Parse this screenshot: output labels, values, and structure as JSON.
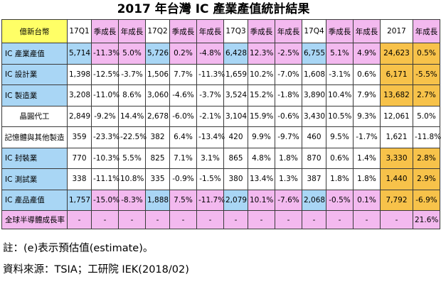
{
  "title": "2017 年台灣 IC 產業產值統計結果",
  "colors": {
    "header_label": "#ffff66",
    "quarter": "#ccf0a0",
    "growth": "#f3b9ef",
    "annual": "#f7c24a",
    "highlight_row": "#a9d6f5"
  },
  "chart_data": {
    "type": "table",
    "title": "2017 年台灣 IC 產業產值統計結果",
    "columns": [
      "億新台幣",
      "17Q1",
      "季成長",
      "年成長",
      "17Q2",
      "季成長",
      "年成長",
      "17Q3",
      "季成長",
      "年成長",
      "17Q4",
      "季成長",
      "年成長",
      "2017",
      "年成長"
    ],
    "rows": [
      {
        "label": "IC 產業產值",
        "values": [
          "5,714",
          "-11.3%",
          "5.0%",
          "5,726",
          "0.2%",
          "-4.8%",
          "6,428",
          "12.3%",
          "-2.5%",
          "6,755",
          "5.1%",
          "4.9%",
          "24,623",
          "0.5%"
        ]
      },
      {
        "label": "IC 設計業",
        "values": [
          "1,398",
          "-12.5%",
          "-3.7%",
          "1,506",
          "7.7%",
          "-11.3%",
          "1,659",
          "10.2%",
          "-7.0%",
          "1,608",
          "-3.1%",
          "0.6%",
          "6,171",
          "-5.5%"
        ]
      },
      {
        "label": "IC 製造業",
        "values": [
          "3,208",
          "-11.0%",
          "8.6%",
          "3,060",
          "-4.6%",
          "-3.7%",
          "3,524",
          "15.2%",
          "-1.8%",
          "3,890",
          "10.4%",
          "7.9%",
          "13,682",
          "2.7%"
        ]
      },
      {
        "label": "晶圓代工",
        "values": [
          "2,849",
          "-9.2%",
          "14.4%",
          "2,678",
          "-6.0%",
          "-2.1%",
          "3,104",
          "15.9%",
          "-0.6%",
          "3,430",
          "10.5%",
          "9.3%",
          "12,061",
          "5.0%"
        ]
      },
      {
        "label": "記憶體與其他製造",
        "values": [
          "359",
          "-23.3%",
          "-22.5%",
          "382",
          "6.4%",
          "-13.4%",
          "420",
          "9.9%",
          "-9.7%",
          "460",
          "9.5%",
          "-1.7%",
          "1,621",
          "-11.8%"
        ]
      },
      {
        "label": "IC 封裝業",
        "values": [
          "770",
          "-10.3%",
          "5.5%",
          "825",
          "7.1%",
          "3.1%",
          "865",
          "4.8%",
          "1.8%",
          "870",
          "0.6%",
          "1.4%",
          "3,330",
          "2.8%"
        ]
      },
      {
        "label": "IC 測試業",
        "values": [
          "338",
          "-11.1%",
          "10.8%",
          "335",
          "-0.9%",
          "-1.5%",
          "380",
          "13.4%",
          "1.3%",
          "387",
          "1.8%",
          "1.8%",
          "1,440",
          "2.9%"
        ]
      },
      {
        "label": "IC 產品產值",
        "values": [
          "1,757",
          "-15.0%",
          "-8.3%",
          "1,888",
          "7.5%",
          "-11.7%",
          "2,079",
          "10.1%",
          "-7.6%",
          "2,068",
          "-0.5%",
          "0.1%",
          "7,792",
          "-6.9%"
        ]
      },
      {
        "label": "全球半導體成長率",
        "values": [
          "-",
          "-",
          "-",
          "-",
          "-",
          "-",
          "-",
          "-",
          "-",
          "-",
          "-",
          "-",
          "-",
          "21.6%"
        ]
      }
    ]
  },
  "notes": {
    "note": "註：(e)表示預估值(estimate)。",
    "source": "資料來源：TSIA；工研院 IEK(2018/02)"
  }
}
